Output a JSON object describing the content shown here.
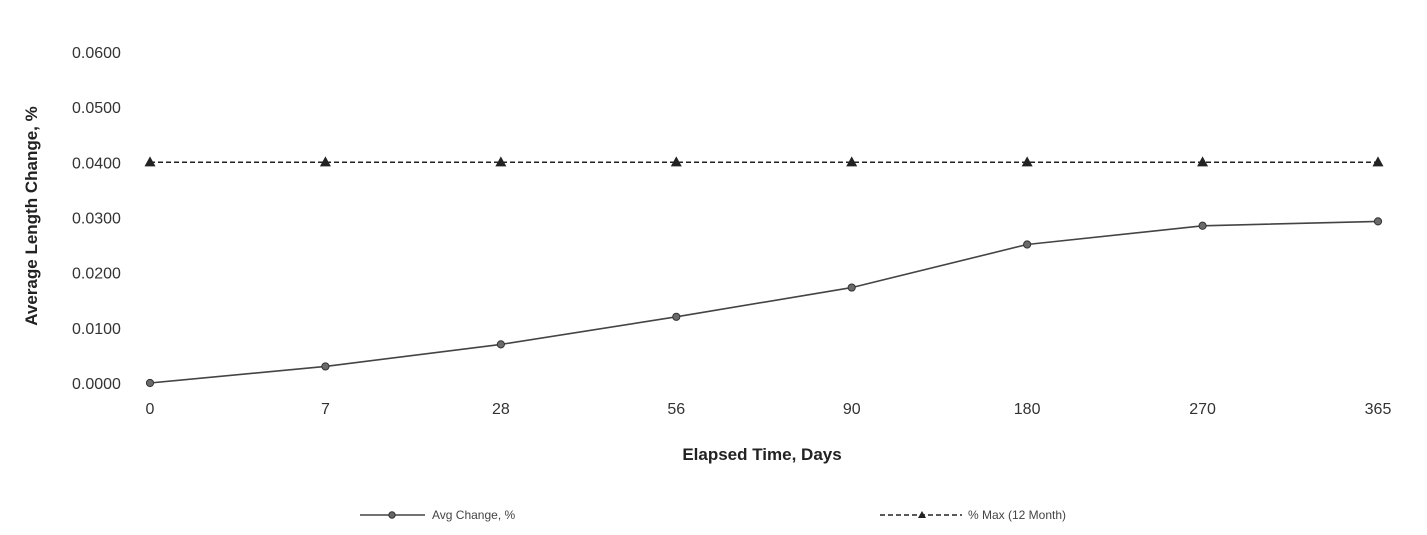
{
  "chart_data": {
    "type": "line",
    "title": "",
    "xlabel": "Elapsed Time, Days",
    "ylabel": "Average Length Change, %",
    "categories": [
      "0",
      "7",
      "28",
      "56",
      "90",
      "180",
      "270",
      "365"
    ],
    "ylim": [
      0,
      0.06
    ],
    "yticks": [
      "0.0000",
      "0.0100",
      "0.0200",
      "0.0300",
      "0.0400",
      "0.0500",
      "0.0600"
    ],
    "grid": false,
    "legend_position": "bottom",
    "series": [
      {
        "name": "Avg Change, %",
        "values": [
          0.0,
          0.003,
          0.007,
          0.012,
          0.0173,
          0.0251,
          0.0285,
          0.0293
        ],
        "style": "solid",
        "marker": "circle",
        "color": "#444444"
      },
      {
        "name": "% Max (12 Month)",
        "values": [
          0.04,
          0.04,
          0.04,
          0.04,
          0.04,
          0.04,
          0.04,
          0.04
        ],
        "style": "dashed",
        "marker": "triangle",
        "color": "#222222"
      }
    ]
  }
}
